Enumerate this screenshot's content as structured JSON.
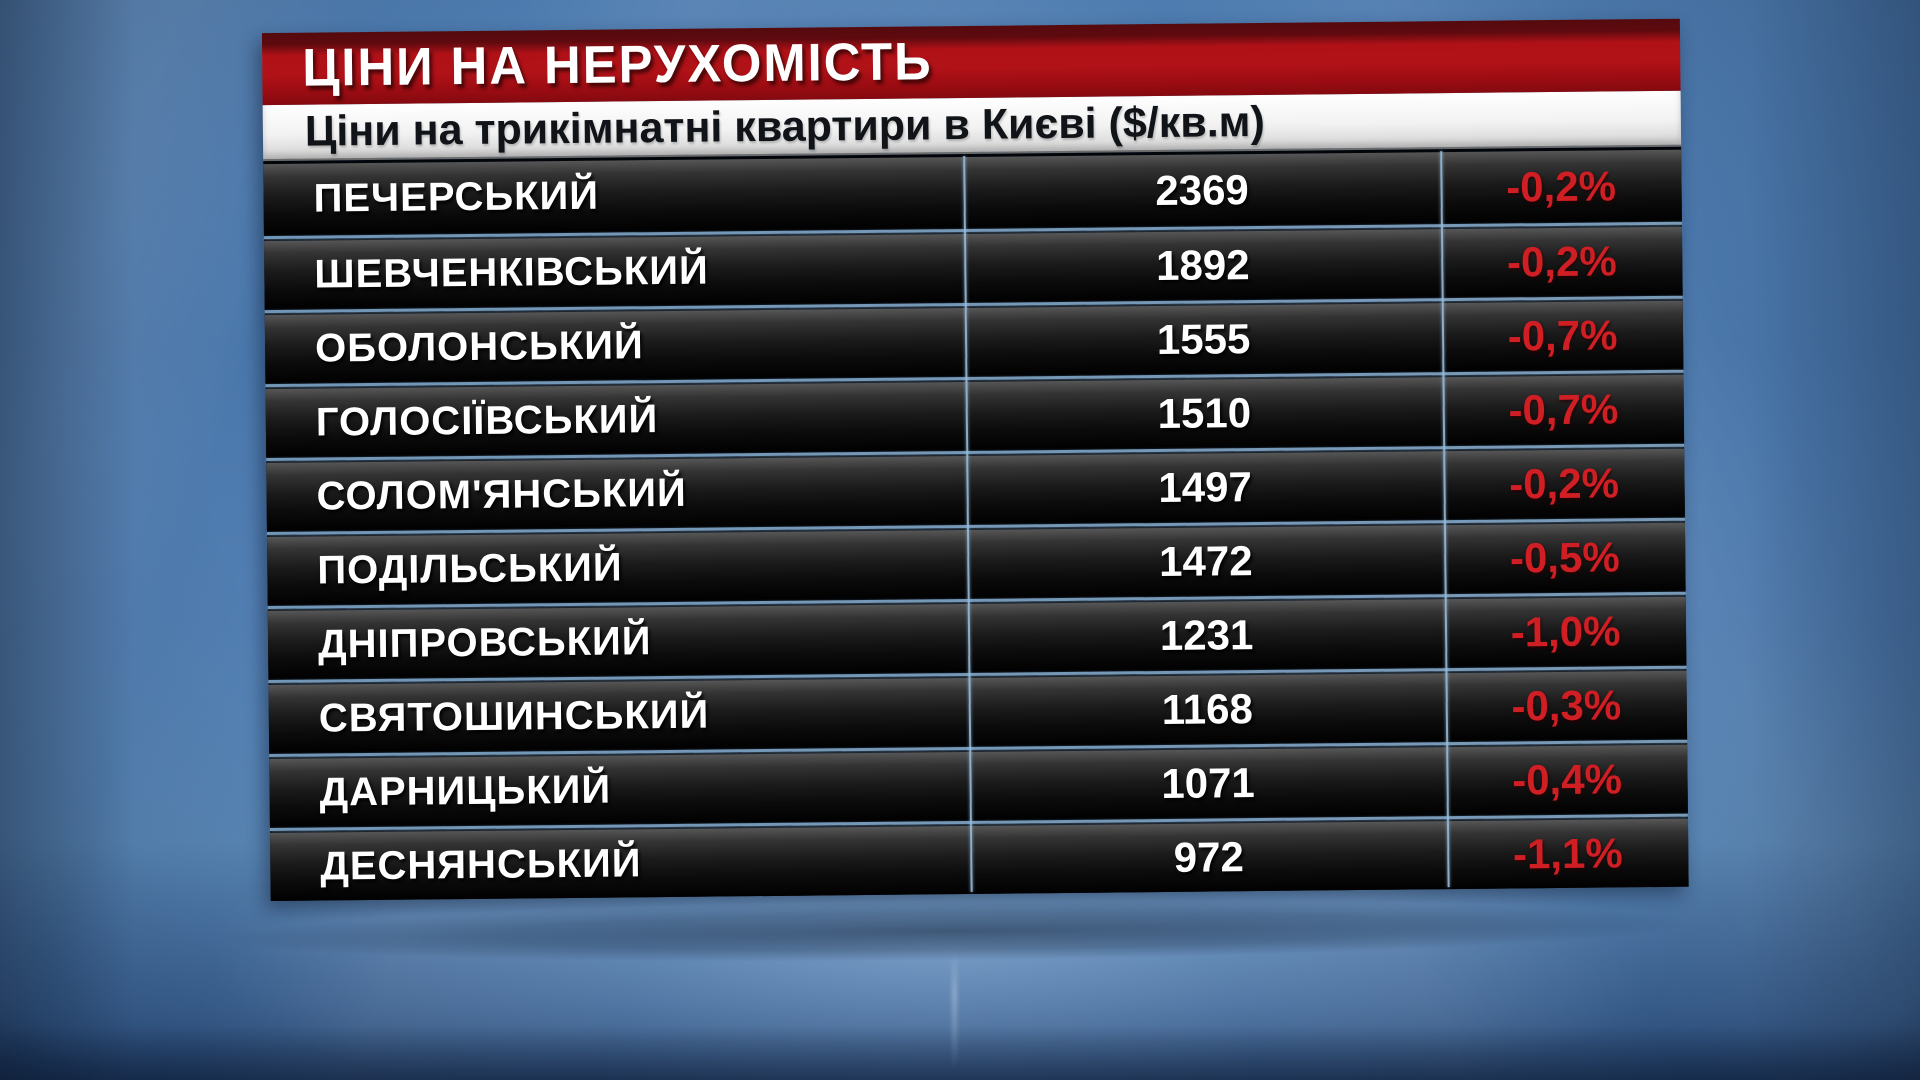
{
  "banner": {
    "title": "ЦІНИ НА НЕРУХОМІСТЬ"
  },
  "subtitle": {
    "text": "Ціни на трикімнатні квартири в Києві ($/кв.м)"
  },
  "chart_data": {
    "type": "table",
    "title": "ЦІНИ НА НЕРУХОМІСТЬ",
    "subtitle": "Ціни на трикімнатні квартири в Києві ($/кв.м)",
    "unit": "$/кв.м",
    "columns": [
      "district",
      "price",
      "change"
    ],
    "rows": [
      {
        "district": "ПЕЧЕРСЬКИЙ",
        "price": 2369,
        "change": "-0,2%"
      },
      {
        "district": "ШЕВЧЕНКІВСЬКИЙ",
        "price": 1892,
        "change": "-0,2%"
      },
      {
        "district": "ОБОЛОНСЬКИЙ",
        "price": 1555,
        "change": "-0,7%"
      },
      {
        "district": "ГОЛОСІЇВСЬКИЙ",
        "price": 1510,
        "change": "-0,7%"
      },
      {
        "district": "СОЛОМ'ЯНСЬКИЙ",
        "price": 1497,
        "change": "-0,2%"
      },
      {
        "district": "ПОДІЛЬСЬКИЙ",
        "price": 1472,
        "change": "-0,5%"
      },
      {
        "district": "ДНІПРОВСЬКИЙ",
        "price": 1231,
        "change": "-1,0%"
      },
      {
        "district": "СВЯТОШИНСЬКИЙ",
        "price": 1168,
        "change": "-0,3%"
      },
      {
        "district": "ДАРНИЦЬКИЙ",
        "price": 1071,
        "change": "-0,4%"
      },
      {
        "district": "ДЕСНЯНСЬКИЙ",
        "price": 972,
        "change": "-1,1%"
      }
    ]
  },
  "colors": {
    "header_red": "#b01117",
    "header_red_dark": "#550a0e",
    "percent_red": "#cf1e24",
    "separator_blue": "#96bad8",
    "background_blue": "#4a77ab",
    "row_dark": "#0b0b0b"
  }
}
